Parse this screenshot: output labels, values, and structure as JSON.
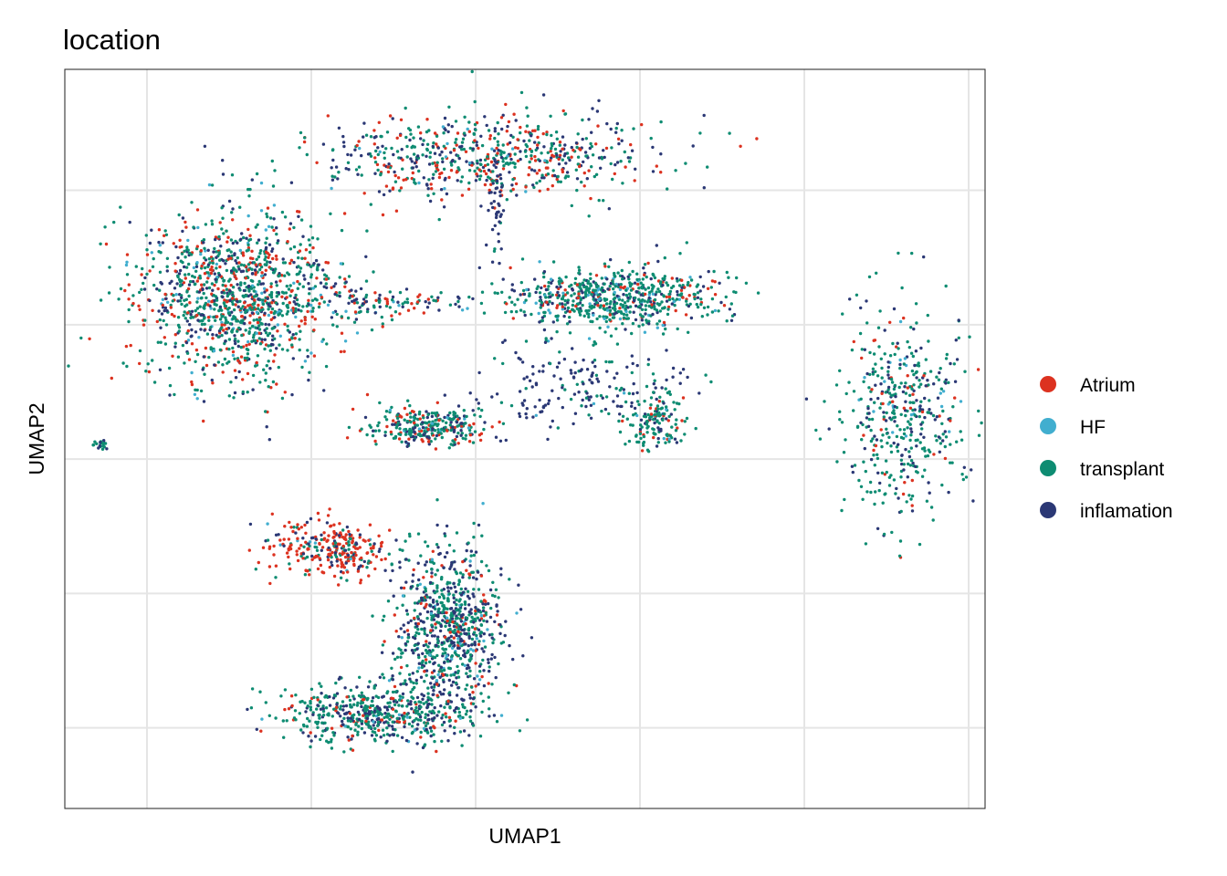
{
  "chart_data": {
    "type": "scatter",
    "title": "location",
    "xlabel": "UMAP1",
    "ylabel": "UMAP2",
    "grid": true,
    "ticks_labeled": false,
    "legend_position": "right",
    "legend": [
      {
        "name": "Atrium",
        "color": "#DC3220"
      },
      {
        "name": "HF",
        "color": "#41AECF"
      },
      {
        "name": "transplant",
        "color": "#0E8C72"
      },
      {
        "name": "inflamation",
        "color": "#2B3875"
      }
    ],
    "xlim": [
      -7.5,
      20.5
    ],
    "ylim": [
      -15.5,
      12.0
    ],
    "x_gridlines": [
      -5,
      0,
      5,
      10,
      15,
      20
    ],
    "y_gridlines": [
      -12.5,
      -7.5,
      -2.5,
      2.5,
      7.5
    ],
    "clusters": [
      {
        "id": "top-arch",
        "x": 5.5,
        "y": 8.8,
        "sx": 2.5,
        "sy": 0.8,
        "n": 650,
        "weights": [
          0.25,
          0.03,
          0.42,
          0.3
        ]
      },
      {
        "id": "top-stalk",
        "x": 5.6,
        "y": 6.5,
        "sx": 0.12,
        "sy": 1.2,
        "n": 45,
        "weights": [
          0,
          0,
          0.25,
          0.75
        ]
      },
      {
        "id": "left-blob",
        "x": -2.2,
        "y": 3.6,
        "sx": 1.5,
        "sy": 1.6,
        "n": 1200,
        "weights": [
          0.22,
          0.08,
          0.5,
          0.2
        ]
      },
      {
        "id": "left-tail",
        "x": 2.2,
        "y": 3.3,
        "sx": 2.0,
        "sy": 0.25,
        "n": 140,
        "weights": [
          0.2,
          0.05,
          0.45,
          0.3
        ]
      },
      {
        "id": "mid-right-blob",
        "x": 9.2,
        "y": 3.5,
        "sx": 1.6,
        "sy": 0.55,
        "n": 650,
        "weights": [
          0.1,
          0.1,
          0.6,
          0.2
        ]
      },
      {
        "id": "mid-branch",
        "x": 8.0,
        "y": 0.2,
        "sx": 1.6,
        "sy": 0.7,
        "n": 170,
        "weights": [
          0.02,
          0.02,
          0.26,
          0.7
        ]
      },
      {
        "id": "mid-low-blob",
        "x": 3.6,
        "y": -1.3,
        "sx": 0.9,
        "sy": 0.35,
        "n": 300,
        "weights": [
          0.15,
          0.05,
          0.5,
          0.3
        ]
      },
      {
        "id": "mid-low-branch",
        "x": 10.5,
        "y": -1.1,
        "sx": 0.45,
        "sy": 0.6,
        "n": 150,
        "weights": [
          0.15,
          0.05,
          0.6,
          0.2
        ]
      },
      {
        "id": "right-crescent",
        "x": 18.0,
        "y": -0.8,
        "sx": 1.0,
        "sy": 1.8,
        "n": 450,
        "weights": [
          0.1,
          0.05,
          0.55,
          0.3
        ]
      },
      {
        "id": "far-left-dot",
        "x": -6.4,
        "y": -2.0,
        "sx": 0.12,
        "sy": 0.12,
        "n": 20,
        "weights": [
          0,
          0,
          0.7,
          0.3
        ]
      },
      {
        "id": "bottom-upper-left",
        "x": 0.7,
        "y": -5.8,
        "sx": 1.0,
        "sy": 0.5,
        "n": 300,
        "weights": [
          0.65,
          0.02,
          0.2,
          0.13
        ]
      },
      {
        "id": "bottom-right-side",
        "x": 4.2,
        "y": -8.8,
        "sx": 0.8,
        "sy": 1.5,
        "n": 800,
        "weights": [
          0.08,
          0.05,
          0.5,
          0.37
        ]
      },
      {
        "id": "bottom-arc",
        "x": 2.0,
        "y": -12.0,
        "sx": 1.5,
        "sy": 0.55,
        "n": 550,
        "weights": [
          0.1,
          0.03,
          0.52,
          0.35
        ]
      }
    ]
  }
}
